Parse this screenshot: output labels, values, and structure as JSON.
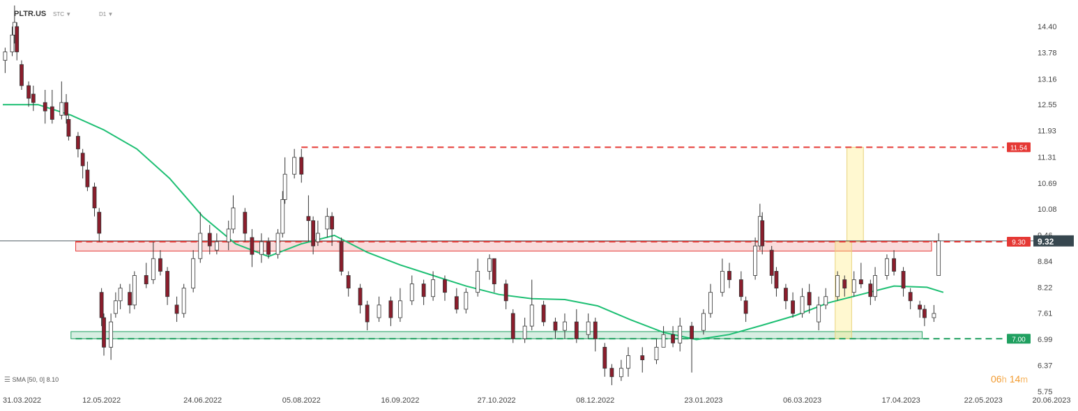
{
  "header": {
    "symbol": "PLTR.US",
    "type_label": "STC",
    "interval_label": "D1"
  },
  "indicator": {
    "icon": "list-icon",
    "label": "SMA",
    "params": "[50, 0]",
    "value": "8.10"
  },
  "timer": {
    "hours": "06",
    "h_unit": "h",
    "minutes": "14",
    "m_unit": "m"
  },
  "colors": {
    "up_candle": "#ffffff",
    "down_candle": "#8b1d2c",
    "sma": "#1dbf73",
    "resistance": "#e53935",
    "support": "#20a060",
    "price_tag": "#37474f",
    "timer": "#f29a2e"
  },
  "chart_data": {
    "type": "candlestick",
    "ylim": [
      5.75,
      14.7
    ],
    "y_ticks": [
      "14.40",
      "13.78",
      "13.16",
      "12.55",
      "11.93",
      "11.31",
      "10.69",
      "10.08",
      "9.46",
      "8.84",
      "8.22",
      "7.61",
      "6.99",
      "6.37",
      "5.75"
    ],
    "x_ticks": [
      "31.03.2022",
      "12.05.2022",
      "24.06.2022",
      "05.08.2022",
      "16.09.2022",
      "27.10.2022",
      "08.12.2022",
      "23.01.2023",
      "06.03.2023",
      "17.04.2023",
      "22.05.2023",
      "20.06.2023"
    ],
    "x_range": [
      "2022-03-31",
      "2023-06-20"
    ],
    "current_price": "9.32",
    "levels": [
      {
        "value": 11.54,
        "label": "11.54",
        "style": "dashed",
        "color": "#e53935"
      },
      {
        "value": 9.3,
        "label": "9.30",
        "style": "dashed",
        "color": "#e53935"
      },
      {
        "value": 7.0,
        "label": "7.00",
        "style": "dashed",
        "color": "#20a060"
      }
    ],
    "zones": [
      {
        "from": "2022-05-01",
        "to": "2023-04-30",
        "low": 9.08,
        "high": 9.31,
        "kind": "resistance"
      },
      {
        "from": "2022-04-29",
        "to": "2023-04-26",
        "low": 7.0,
        "high": 7.17,
        "kind": "support"
      }
    ],
    "highlights": [
      {
        "from": "2023-03-25",
        "to": "2023-04-01",
        "low": 9.3,
        "high": 11.54
      },
      {
        "from": "2023-03-20",
        "to": "2023-03-27",
        "low": 7.0,
        "high": 9.3
      }
    ],
    "sma": {
      "name": "SMA",
      "points": [
        [
          "2022-03-31",
          12.55
        ],
        [
          "2022-04-15",
          12.55
        ],
        [
          "2022-04-29",
          12.3
        ],
        [
          "2022-05-13",
          11.95
        ],
        [
          "2022-05-27",
          11.5
        ],
        [
          "2022-06-10",
          10.8
        ],
        [
          "2022-06-24",
          9.9
        ],
        [
          "2022-07-08",
          9.25
        ],
        [
          "2022-07-22",
          8.95
        ],
        [
          "2022-08-05",
          9.25
        ],
        [
          "2022-08-19",
          9.45
        ],
        [
          "2022-09-02",
          9.05
        ],
        [
          "2022-09-16",
          8.75
        ],
        [
          "2022-09-30",
          8.5
        ],
        [
          "2022-10-14",
          8.25
        ],
        [
          "2022-10-28",
          8.05
        ],
        [
          "2022-11-11",
          7.95
        ],
        [
          "2022-11-25",
          7.93
        ],
        [
          "2022-12-09",
          7.78
        ],
        [
          "2022-12-23",
          7.45
        ],
        [
          "2023-01-06",
          7.15
        ],
        [
          "2023-01-20",
          6.98
        ],
        [
          "2023-02-03",
          7.1
        ],
        [
          "2023-02-17",
          7.32
        ],
        [
          "2023-03-03",
          7.55
        ],
        [
          "2023-03-17",
          7.85
        ],
        [
          "2023-03-31",
          8.05
        ],
        [
          "2023-04-14",
          8.25
        ],
        [
          "2023-04-28",
          8.22
        ],
        [
          "2023-05-05",
          8.1
        ]
      ]
    },
    "candles": [
      [
        "2022-04-01",
        13.6,
        13.8,
        13.9,
        13.3
      ],
      [
        "2022-04-04",
        13.8,
        14.2,
        14.4,
        13.7
      ],
      [
        "2022-04-05",
        14.2,
        14.5,
        14.9,
        14.0
      ],
      [
        "2022-04-06",
        14.4,
        13.8,
        14.5,
        13.6
      ],
      [
        "2022-04-08",
        13.5,
        13.0,
        13.6,
        12.9
      ],
      [
        "2022-04-11",
        13.0,
        12.7,
        13.1,
        12.5
      ],
      [
        "2022-04-13",
        12.8,
        12.6,
        13.0,
        12.4
      ],
      [
        "2022-04-18",
        12.6,
        12.4,
        12.9,
        12.1
      ],
      [
        "2022-04-21",
        12.5,
        12.2,
        12.9,
        12.1
      ],
      [
        "2022-04-25",
        12.3,
        12.6,
        13.1,
        12.2
      ],
      [
        "2022-04-27",
        12.6,
        12.3,
        12.8,
        12.1
      ],
      [
        "2022-04-28",
        12.2,
        11.8,
        12.3,
        11.7
      ],
      [
        "2022-05-02",
        11.8,
        11.5,
        11.9,
        11.3
      ],
      [
        "2022-05-04",
        11.4,
        11.1,
        11.5,
        10.8
      ],
      [
        "2022-05-06",
        11.0,
        10.6,
        11.2,
        10.5
      ],
      [
        "2022-05-09",
        10.6,
        10.1,
        10.7,
        9.9
      ],
      [
        "2022-05-11",
        10.0,
        9.5,
        10.1,
        9.3
      ],
      [
        "2022-05-12",
        8.1,
        7.5,
        8.2,
        7.3
      ],
      [
        "2022-05-13",
        7.5,
        6.8,
        7.6,
        6.6
      ],
      [
        "2022-05-16",
        6.8,
        7.4,
        7.6,
        6.5
      ],
      [
        "2022-05-18",
        7.6,
        7.9,
        8.1,
        7.5
      ],
      [
        "2022-05-20",
        7.9,
        8.2,
        8.3,
        7.7
      ],
      [
        "2022-05-24",
        8.1,
        7.8,
        8.3,
        7.6
      ],
      [
        "2022-05-26",
        7.8,
        8.5,
        8.6,
        7.7
      ],
      [
        "2022-05-31",
        8.5,
        8.3,
        8.8,
        8.2
      ],
      [
        "2022-06-03",
        8.4,
        8.9,
        9.3,
        8.3
      ],
      [
        "2022-06-06",
        8.9,
        8.6,
        9.1,
        8.5
      ],
      [
        "2022-06-09",
        8.6,
        8.0,
        8.7,
        7.8
      ],
      [
        "2022-06-13",
        7.8,
        7.6,
        8.0,
        7.4
      ],
      [
        "2022-06-16",
        7.6,
        8.2,
        8.3,
        7.5
      ],
      [
        "2022-06-20",
        8.2,
        8.9,
        9.1,
        8.1
      ],
      [
        "2022-06-23",
        8.9,
        9.5,
        10.0,
        8.8
      ],
      [
        "2022-06-27",
        9.5,
        9.2,
        9.7,
        9.0
      ],
      [
        "2022-06-30",
        9.1,
        9.3,
        9.5,
        9.0
      ],
      [
        "2022-07-05",
        9.3,
        9.6,
        9.8,
        9.1
      ],
      [
        "2022-07-07",
        9.6,
        10.1,
        10.4,
        9.5
      ],
      [
        "2022-07-12",
        10.0,
        9.5,
        10.1,
        9.3
      ],
      [
        "2022-07-15",
        9.4,
        9.0,
        9.6,
        8.7
      ],
      [
        "2022-07-19",
        9.0,
        9.3,
        9.5,
        8.8
      ],
      [
        "2022-07-22",
        9.3,
        9.0,
        9.4,
        8.9
      ],
      [
        "2022-07-26",
        9.0,
        9.5,
        9.6,
        8.9
      ],
      [
        "2022-07-28",
        9.5,
        10.3,
        10.5,
        9.4
      ],
      [
        "2022-07-29",
        10.3,
        10.9,
        11.3,
        10.2
      ],
      [
        "2022-08-02",
        10.9,
        11.3,
        11.5,
        10.8
      ],
      [
        "2022-08-05",
        11.3,
        10.9,
        11.5,
        10.7
      ],
      [
        "2022-08-08",
        9.9,
        9.8,
        10.4,
        9.3
      ],
      [
        "2022-08-10",
        9.8,
        9.2,
        9.9,
        9.0
      ],
      [
        "2022-08-12",
        9.3,
        9.5,
        9.8,
        9.2
      ],
      [
        "2022-08-16",
        9.6,
        9.9,
        10.1,
        9.4
      ],
      [
        "2022-08-18",
        9.9,
        9.6,
        10.0,
        9.2
      ],
      [
        "2022-08-22",
        9.3,
        8.6,
        9.4,
        8.5
      ],
      [
        "2022-08-25",
        8.5,
        8.2,
        8.6,
        8.0
      ],
      [
        "2022-08-30",
        8.2,
        7.8,
        8.3,
        7.6
      ],
      [
        "2022-09-02",
        7.8,
        7.4,
        7.9,
        7.2
      ],
      [
        "2022-09-07",
        7.5,
        7.8,
        8.0,
        7.4
      ],
      [
        "2022-09-12",
        7.9,
        7.5,
        8.0,
        7.3
      ],
      [
        "2022-09-16",
        7.5,
        7.9,
        8.2,
        7.4
      ],
      [
        "2022-09-21",
        7.9,
        8.3,
        8.5,
        7.8
      ],
      [
        "2022-09-26",
        8.3,
        8.0,
        8.4,
        7.8
      ],
      [
        "2022-09-30",
        8.0,
        8.4,
        8.6,
        7.9
      ],
      [
        "2022-10-05",
        8.4,
        8.1,
        8.5,
        7.9
      ],
      [
        "2022-10-10",
        8.0,
        7.7,
        8.2,
        7.6
      ],
      [
        "2022-10-14",
        7.7,
        8.1,
        8.2,
        7.6
      ],
      [
        "2022-10-19",
        8.1,
        8.6,
        8.9,
        8.0
      ],
      [
        "2022-10-24",
        8.6,
        8.9,
        9.0,
        8.4
      ],
      [
        "2022-10-26",
        8.9,
        8.3,
        8.9,
        8.1
      ],
      [
        "2022-10-31",
        8.3,
        7.9,
        8.4,
        7.7
      ],
      [
        "2022-11-03",
        7.6,
        7.0,
        7.7,
        6.9
      ],
      [
        "2022-11-08",
        7.0,
        7.3,
        7.5,
        6.9
      ],
      [
        "2022-11-11",
        7.3,
        7.8,
        8.4,
        7.2
      ],
      [
        "2022-11-16",
        7.8,
        7.4,
        7.9,
        7.3
      ],
      [
        "2022-11-21",
        7.4,
        7.2,
        7.5,
        7.0
      ],
      [
        "2022-11-25",
        7.2,
        7.4,
        7.6,
        7.0
      ],
      [
        "2022-11-30",
        7.4,
        7.0,
        7.7,
        6.9
      ],
      [
        "2022-12-05",
        7.1,
        7.4,
        7.6,
        7.0
      ],
      [
        "2022-12-08",
        7.4,
        7.0,
        7.5,
        6.7
      ],
      [
        "2022-12-12",
        6.8,
        6.3,
        6.9,
        6.1
      ],
      [
        "2022-12-15",
        6.3,
        6.1,
        6.4,
        5.9
      ],
      [
        "2022-12-19",
        6.1,
        6.3,
        6.5,
        6.0
      ],
      [
        "2022-12-22",
        6.3,
        6.6,
        6.8,
        6.1
      ],
      [
        "2022-12-28",
        6.6,
        6.5,
        6.8,
        6.2
      ],
      [
        "2023-01-03",
        6.5,
        6.8,
        7.0,
        6.4
      ],
      [
        "2023-01-06",
        6.8,
        7.1,
        7.3,
        6.9
      ],
      [
        "2023-01-10",
        7.1,
        6.9,
        7.3,
        6.8
      ],
      [
        "2023-01-13",
        6.9,
        7.3,
        7.5,
        6.7
      ],
      [
        "2023-01-18",
        7.3,
        7.0,
        7.4,
        6.2
      ],
      [
        "2023-01-23",
        7.2,
        7.6,
        7.7,
        7.1
      ],
      [
        "2023-01-26",
        7.6,
        8.1,
        8.3,
        7.5
      ],
      [
        "2023-01-31",
        8.1,
        8.6,
        8.9,
        8.0
      ],
      [
        "2023-02-03",
        8.6,
        8.4,
        8.8,
        8.2
      ],
      [
        "2023-02-08",
        8.4,
        8.0,
        8.6,
        7.9
      ],
      [
        "2023-02-10",
        7.9,
        7.6,
        8.0,
        7.4
      ],
      [
        "2023-02-14",
        8.5,
        9.2,
        9.4,
        8.4
      ],
      [
        "2023-02-16",
        9.2,
        9.9,
        10.2,
        9.1
      ],
      [
        "2023-02-17",
        9.8,
        9.2,
        10.0,
        9.0
      ],
      [
        "2023-02-21",
        9.1,
        8.5,
        9.2,
        8.3
      ],
      [
        "2023-02-23",
        8.6,
        8.2,
        8.7,
        8.0
      ],
      [
        "2023-02-27",
        8.2,
        7.9,
        8.3,
        7.7
      ],
      [
        "2023-03-02",
        7.9,
        7.6,
        8.1,
        7.5
      ],
      [
        "2023-03-06",
        7.6,
        8.0,
        8.2,
        7.5
      ],
      [
        "2023-03-09",
        8.1,
        7.8,
        8.3,
        7.6
      ],
      [
        "2023-03-13",
        7.4,
        7.8,
        8.0,
        7.2
      ],
      [
        "2023-03-16",
        7.8,
        8.0,
        8.2,
        7.7
      ],
      [
        "2023-03-21",
        8.0,
        8.5,
        8.6,
        7.9
      ],
      [
        "2023-03-24",
        8.4,
        8.2,
        8.5,
        8.0
      ],
      [
        "2023-03-28",
        8.1,
        8.4,
        8.6,
        8.0
      ],
      [
        "2023-03-31",
        8.4,
        8.3,
        8.8,
        8.2
      ],
      [
        "2023-04-04",
        8.3,
        8.0,
        8.4,
        7.8
      ],
      [
        "2023-04-06",
        8.0,
        8.5,
        8.7,
        7.9
      ],
      [
        "2023-04-11",
        8.5,
        8.9,
        9.0,
        8.4
      ],
      [
        "2023-04-14",
        8.9,
        8.6,
        9.1,
        8.5
      ],
      [
        "2023-04-18",
        8.6,
        8.2,
        8.7,
        8.0
      ],
      [
        "2023-04-21",
        8.1,
        7.9,
        8.2,
        7.7
      ],
      [
        "2023-04-25",
        7.8,
        7.7,
        7.9,
        7.5
      ],
      [
        "2023-04-27",
        7.7,
        7.5,
        7.8,
        7.3
      ],
      [
        "2023-05-01",
        7.5,
        7.6,
        7.8,
        7.4
      ],
      [
        "2023-05-03",
        8.5,
        9.32,
        9.5,
        8.7
      ]
    ]
  }
}
